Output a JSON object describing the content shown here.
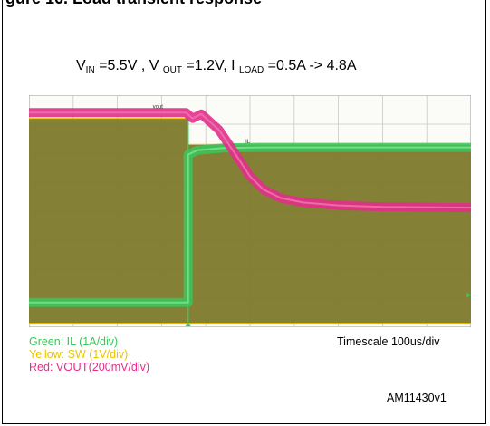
{
  "header_fragment": "gure 16. Load transient response",
  "conditions": {
    "vin_label": "V",
    "vin_sub": "IN",
    "vin_value": " =5.5V   , ",
    "vout_label": "V ",
    "vout_sub": "OUT",
    "vout_value": " =1.2V, I   ",
    "iload_sub": "LOAD",
    "iload_value": " =0.5A    ->  4.8A"
  },
  "legend": {
    "green": "Green: IL (1A/div)",
    "yellow": "Yellow: SW (1V/div)",
    "red_prefix": "Red: V",
    "red_sub": "OUT",
    "red_suffix": "(200mV/div)"
  },
  "timescale": "Timescale 100us/div",
  "figure_id": "AM11430v1",
  "colors": {
    "green": "#39c75a",
    "yellow": "#e8c400",
    "red": "#e0308a",
    "sw_fill": "#7d7a2b",
    "grid": "#c8c8c8"
  },
  "chart_data": {
    "type": "line",
    "x_unit": "div",
    "xlim": [
      0,
      10
    ],
    "ylim": [
      0,
      8
    ],
    "step_at_div": 3.6,
    "trace_tags": {
      "vout": "vout",
      "il": "IL"
    },
    "series": [
      {
        "name": "IL",
        "x": [
          0,
          3.6,
          3.6,
          3.8,
          4.4,
          5.2,
          6.2,
          10
        ],
        "y": [
          0.85,
          0.85,
          5.95,
          6.1,
          6.18,
          6.2,
          6.2,
          6.2
        ]
      },
      {
        "name": "SW",
        "x": [
          0,
          3.6,
          3.6,
          10
        ],
        "y_top": [
          7.2,
          7.2,
          6.3,
          6.3
        ],
        "y_bottom": [
          0.12,
          0.12,
          0.12,
          0.12
        ]
      },
      {
        "name": "VOUT",
        "x": [
          0,
          3.55,
          3.7,
          3.9,
          4.3,
          4.7,
          5.0,
          5.3,
          5.7,
          6.2,
          7.0,
          8.0,
          10
        ],
        "y": [
          7.4,
          7.4,
          7.2,
          7.35,
          6.8,
          5.9,
          5.2,
          4.75,
          4.45,
          4.3,
          4.2,
          4.15,
          4.12
        ]
      }
    ]
  }
}
